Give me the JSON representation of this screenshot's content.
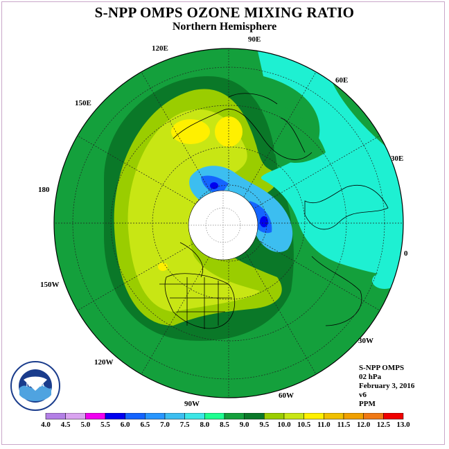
{
  "title": "S-NPP OMPS OZONE MIXING RATIO",
  "subtitle": "Northern Hemisphere",
  "longitude_labels": {
    "e90": "90E",
    "e120": "120E",
    "e60": "60E",
    "e150": "150E",
    "e30": "30E",
    "d180": "180",
    "zero": "0",
    "w150": "150W",
    "w30": "30W",
    "w120": "120W",
    "w60": "60W",
    "w90": "90W"
  },
  "info": {
    "instrument": "S-NPP OMPS",
    "level": "02 hPa",
    "date": "February 3, 2016",
    "version": "v6",
    "units": "PPM"
  },
  "color_scale": {
    "colors": [
      "#b37fe6",
      "#d9a3f0",
      "#f000f0",
      "#0000f0",
      "#1464ff",
      "#2896ff",
      "#3cbef0",
      "#3ce6e6",
      "#1eff90",
      "#14a03c",
      "#0a7828",
      "#9acd00",
      "#c8e614",
      "#fff000",
      "#f0c000",
      "#f0a000",
      "#f07814",
      "#f00000",
      "#8c5a3c"
    ],
    "labels": [
      "4.0",
      "4.5",
      "5.0",
      "5.5",
      "6.0",
      "6.5",
      "7.0",
      "7.5",
      "8.0",
      "8.5",
      "9.0",
      "9.5",
      "10.0",
      "10.5",
      "11.0",
      "11.5",
      "12.0",
      "12.5",
      "13.0"
    ]
  },
  "logo_text": "NOAA",
  "palette": {
    "ocean_green": "#14a03c",
    "dark_green": "#0a7828",
    "cyan": "#1ef0d2",
    "lime": "#9acd00",
    "yellow_green": "#c8e614",
    "yellow": "#fff000",
    "blue": "#1464ff",
    "deep_blue": "#0000f0"
  }
}
